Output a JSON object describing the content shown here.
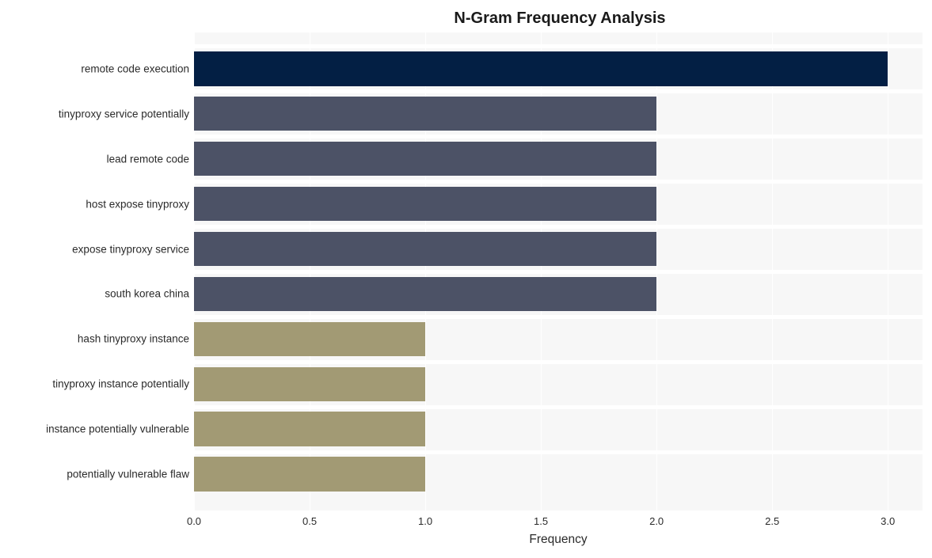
{
  "chart": {
    "type": "bar-horizontal",
    "title": "N-Gram Frequency Analysis",
    "title_fontsize": 20,
    "title_fontweight": "bold",
    "xlabel": "Frequency",
    "xlabel_fontsize": 15,
    "ylabel_fontsize": 13.5,
    "xtick_fontsize": 13,
    "background_color": "#f7f7f7",
    "grid_color": "#ffffff",
    "xlim": [
      0,
      3.15
    ],
    "xticks": [
      0.0,
      0.5,
      1.0,
      1.5,
      2.0,
      2.5,
      3.0
    ],
    "xtick_labels": [
      "0.0",
      "0.5",
      "1.0",
      "1.5",
      "2.0",
      "2.5",
      "3.0"
    ],
    "bar_height_ratio": 0.77,
    "categories": [
      "remote code execution",
      "tinyproxy service potentially",
      "lead remote code",
      "host expose tinyproxy",
      "expose tinyproxy service",
      "south korea china",
      "hash tinyproxy instance",
      "tinyproxy instance potentially",
      "instance potentially vulnerable",
      "potentially vulnerable flaw"
    ],
    "values": [
      3,
      2,
      2,
      2,
      2,
      2,
      1,
      1,
      1,
      1
    ],
    "bar_colors": [
      "#031f44",
      "#4c5266",
      "#4c5266",
      "#4c5266",
      "#4c5266",
      "#4c5266",
      "#a29a74",
      "#a29a74",
      "#a29a74",
      "#a29a74"
    ]
  }
}
